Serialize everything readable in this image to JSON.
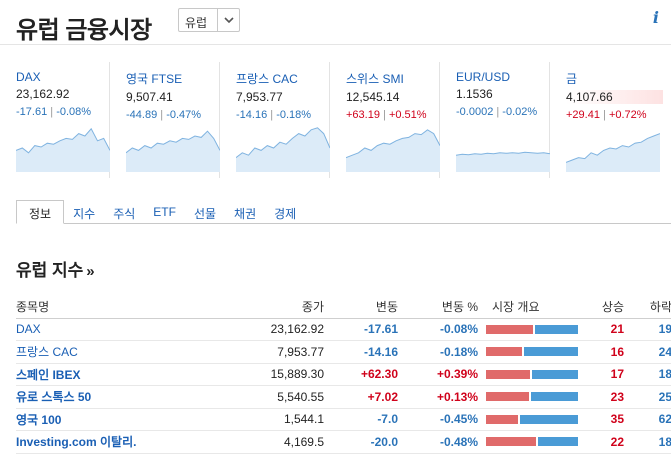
{
  "header": {
    "title": "유럽 금융시장",
    "region_value": "유럽"
  },
  "quotes": [
    {
      "name": "DAX",
      "price": "23,162.92",
      "change": "-17.61",
      "pct": "-0.08%",
      "dir": "neg",
      "spark": [
        0.55,
        0.5,
        0.6,
        0.45,
        0.48,
        0.4,
        0.42,
        0.35,
        0.3,
        0.32,
        0.2,
        0.25,
        0.1,
        0.35,
        0.3,
        0.55
      ]
    },
    {
      "name": "영국 FTSE",
      "price": "9,507.41",
      "change": "-44.89",
      "pct": "-0.47%",
      "dir": "neg",
      "spark": [
        0.6,
        0.5,
        0.55,
        0.45,
        0.5,
        0.4,
        0.42,
        0.35,
        0.38,
        0.3,
        0.32,
        0.25,
        0.28,
        0.15,
        0.3,
        0.55
      ]
    },
    {
      "name": "프랑스 CAC",
      "price": "7,953.77",
      "change": "-14.16",
      "pct": "-0.18%",
      "dir": "neg",
      "spark": [
        0.7,
        0.6,
        0.65,
        0.5,
        0.55,
        0.45,
        0.5,
        0.38,
        0.42,
        0.3,
        0.2,
        0.25,
        0.12,
        0.08,
        0.2,
        0.5
      ]
    },
    {
      "name": "스위스 SMI",
      "price": "12,545.14",
      "change": "+63.19",
      "pct": "+0.51%",
      "dir": "pos",
      "spark": [
        0.7,
        0.65,
        0.6,
        0.5,
        0.55,
        0.45,
        0.4,
        0.42,
        0.35,
        0.3,
        0.28,
        0.2,
        0.22,
        0.12,
        0.2,
        0.45
      ]
    },
    {
      "name": "EUR/USD",
      "price": "1.1536",
      "change": "-0.0002",
      "pct": "-0.02%",
      "dir": "neg",
      "spark": [
        0.65,
        0.63,
        0.64,
        0.62,
        0.63,
        0.61,
        0.62,
        0.6,
        0.61,
        0.6,
        0.61,
        0.59,
        0.6,
        0.61,
        0.6,
        0.62
      ]
    },
    {
      "name": "금",
      "price": "4,107.66",
      "change": "+29.41",
      "pct": "+0.72%",
      "dir": "pos",
      "highlight": true,
      "spark": [
        0.8,
        0.75,
        0.7,
        0.72,
        0.6,
        0.65,
        0.55,
        0.5,
        0.52,
        0.45,
        0.48,
        0.4,
        0.38,
        0.3,
        0.25,
        0.2
      ]
    }
  ],
  "tabs": [
    "정보",
    "지수",
    "주식",
    "ETF",
    "선물",
    "채권",
    "경제"
  ],
  "section_title": "유럽 지수",
  "table": {
    "headers": [
      "종목명",
      "종가",
      "변동",
      "변동 %",
      "시장 개요",
      "상승",
      "하락"
    ],
    "rows": [
      {
        "name": "DAX",
        "close": "23,162.92",
        "chg": "-17.61",
        "pct": "-0.08%",
        "dir": "dn",
        "bold": false,
        "up": "21",
        "down": "19"
      },
      {
        "name": "프랑스 CAC",
        "close": "7,953.77",
        "chg": "-14.16",
        "pct": "-0.18%",
        "dir": "dn",
        "bold": false,
        "up": "16",
        "down": "24"
      },
      {
        "name": "스페인 IBEX",
        "close": "15,889.30",
        "chg": "+62.30",
        "pct": "+0.39%",
        "dir": "up",
        "bold": true,
        "up": "17",
        "down": "18"
      },
      {
        "name": "유로 스톡스 50",
        "close": "5,540.55",
        "chg": "+7.02",
        "pct": "+0.13%",
        "dir": "up",
        "bold": true,
        "up": "23",
        "down": "25"
      },
      {
        "name": "영국 100",
        "close": "1,544.1",
        "chg": "-7.0",
        "pct": "-0.45%",
        "dir": "dn",
        "bold": true,
        "up": "35",
        "down": "62"
      },
      {
        "name": "Investing.com 이탈리.",
        "close": "4,169.5",
        "chg": "-20.0",
        "pct": "-0.48%",
        "dir": "dn",
        "bold": true,
        "up": "22",
        "down": "18"
      }
    ]
  },
  "colors": {
    "link": "#1a5fb4",
    "up": "#d0021b",
    "down": "#2a73b8",
    "bar_up": "#e06a6a",
    "bar_down": "#4a9bd6",
    "spark_fill": "#dcebf8",
    "spark_line": "#7fb3e0"
  }
}
